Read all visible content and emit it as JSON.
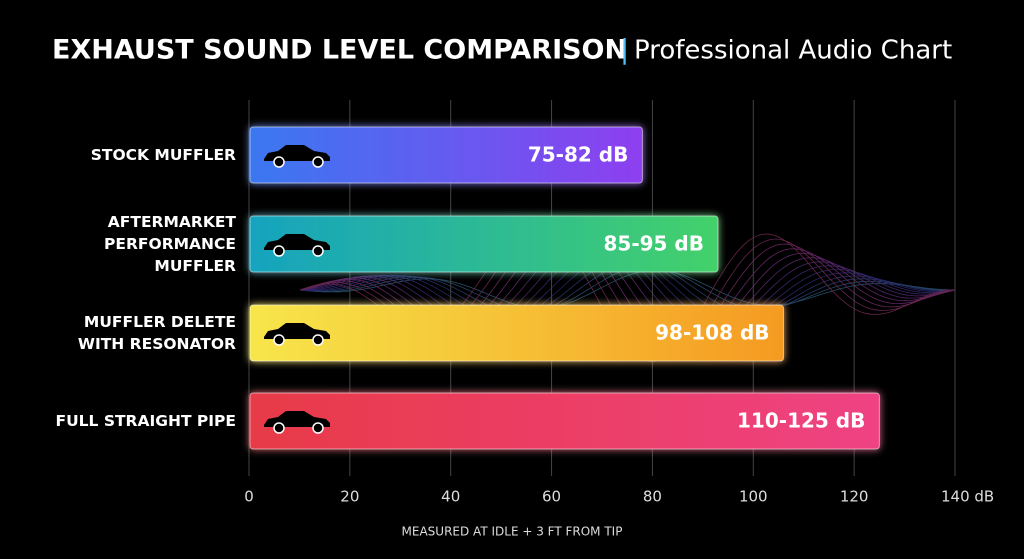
{
  "chart_data": {
    "type": "bar",
    "orientation": "horizontal",
    "title": "EXHAUST SOUND LEVEL COMPARISON",
    "subtitle": "Professional Audio Chart",
    "footnote": "MEASURED AT IDLE + 3 FT FROM TIP",
    "categories": [
      "STOCK MUFFLER",
      "AFTERMARKET PERFORMANCE MUFFLER",
      "MUFFLER DELETE WITH RESONATOR",
      "FULL STRAIGHT PIPE"
    ],
    "values": [
      78,
      93,
      106,
      125
    ],
    "range_labels": [
      "75-82 dB",
      "85-95 dB",
      "98-108 dB",
      "110-125 dB"
    ],
    "colors": [
      [
        "#3a78f0",
        "#8e3ff0"
      ],
      [
        "#16a3bf",
        "#44d16a"
      ],
      [
        "#f7e64a",
        "#f59a22"
      ],
      [
        "#e83a48",
        "#ef4383"
      ]
    ],
    "xlim": [
      0,
      140
    ],
    "xticks": [
      0,
      20,
      40,
      60,
      80,
      100,
      120,
      {
        "value": 140,
        "label": "140 dB"
      }
    ],
    "grid": true
  }
}
